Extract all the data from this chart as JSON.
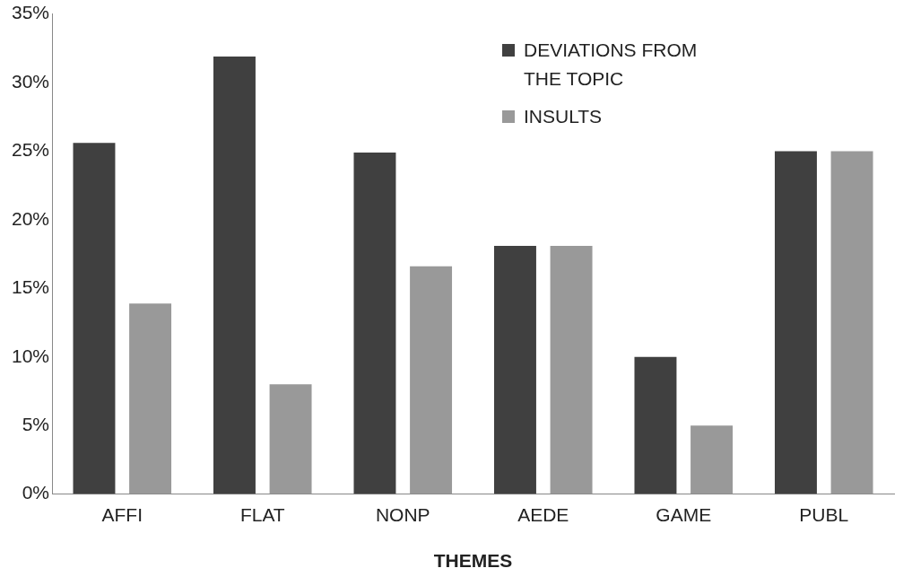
{
  "chart_data": {
    "type": "bar",
    "xlabel": "THEMES",
    "categories": [
      "AFFI",
      "FLAT",
      "NONP",
      "AEDE",
      "GAME",
      "PUBL"
    ],
    "series": [
      {
        "name": "DEVIATIONS FROM THE TOPIC",
        "color": "#404040",
        "values": [
          25.6,
          31.9,
          24.9,
          18.1,
          10,
          25
        ]
      },
      {
        "name": "INSULTS",
        "color": "#999999",
        "values": [
          13.9,
          8,
          16.6,
          18.1,
          5,
          25
        ]
      }
    ],
    "ylim": [
      0,
      35
    ],
    "yticks": [
      {
        "value": 0,
        "label": "0%"
      },
      {
        "value": 5,
        "label": "5%"
      },
      {
        "value": 10,
        "label": "10%"
      },
      {
        "value": 15,
        "label": "15%"
      },
      {
        "value": 20,
        "label": "20%"
      },
      {
        "value": 25,
        "label": "25%"
      },
      {
        "value": 30,
        "label": "30%"
      },
      {
        "value": 35,
        "label": "35%"
      }
    ],
    "grid": false,
    "legend": "top right"
  }
}
